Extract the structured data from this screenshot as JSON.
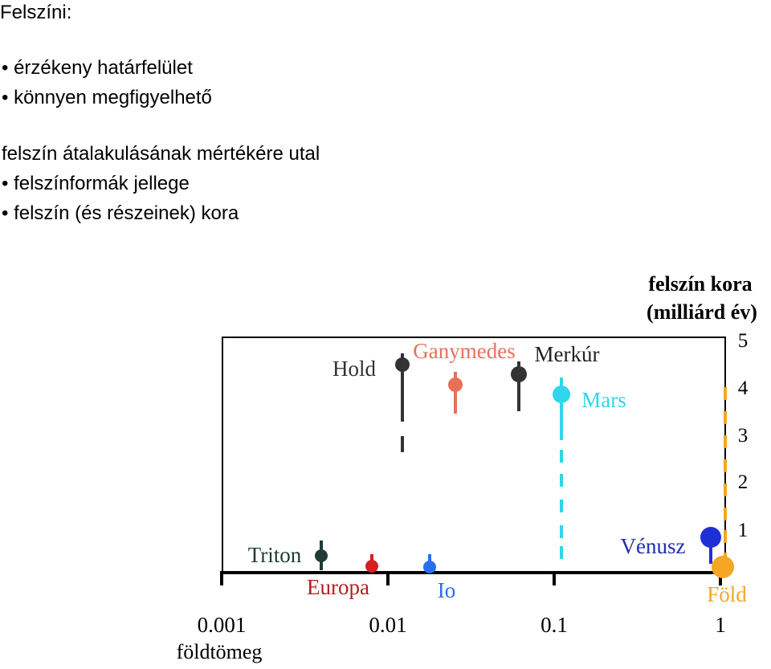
{
  "text": {
    "title": "Felszíni:",
    "bullets1": [
      "• érzékeny határfelület",
      "• könnyen megfigyelhető"
    ],
    "lead": "felszín átalakulásának mértékére utal",
    "bullets2": [
      "• felszínformák jellege",
      "• felszín (és részeinek) kora"
    ]
  },
  "chart_data": {
    "type": "scatter",
    "xscale": "log",
    "xlabel": "földtömeg",
    "x_ticks": [
      "0.001",
      "0.01",
      "0.1",
      "1"
    ],
    "ylabel_right": [
      "felszín kora",
      "(milliárd év)"
    ],
    "y_ticks": [
      "1",
      "2",
      "3",
      "4",
      "5"
    ],
    "ylim": [
      0,
      5
    ],
    "points": [
      {
        "label": "Hold",
        "x": 0.0123,
        "y": 4.4,
        "low": 3.1,
        "low2": 2.6,
        "color": "#333333"
      },
      {
        "label": "Ganymedes",
        "x": 0.025,
        "y": 3.9,
        "low": 3.3,
        "color": "#e8705a"
      },
      {
        "label": "Merkúr",
        "x": 0.055,
        "y": 4.1,
        "low": 3.3,
        "color": "#333333"
      },
      {
        "label": "Mars",
        "x": 0.107,
        "y": 3.8,
        "low": 0.5,
        "color": "#2fd6ec"
      },
      {
        "label": "Vénusz",
        "x": 0.815,
        "y": 0.7,
        "low": 0.3,
        "color": "#1f2fd8"
      },
      {
        "label": "Föld",
        "x": 1.0,
        "y": 0.05,
        "low": 4.0,
        "color": "#f5a623"
      },
      {
        "label": "Triton",
        "x": 0.0036,
        "y": 0.3,
        "low": 0.6,
        "color": "#1f3b37"
      },
      {
        "label": "Europa",
        "x": 0.008,
        "y": 0.15,
        "low": 0.35,
        "color": "#d42020"
      },
      {
        "label": "Io",
        "x": 0.015,
        "y": 0.15,
        "low": 0.4,
        "color": "#2a6ef0"
      }
    ],
    "label_colors": {
      "Hold": "#333333",
      "Ganymedes": "#e8705a",
      "Merkúr": "#222222",
      "Mars": "#2fd6ec",
      "Vénusz": "#1f2fa8",
      "Föld": "#f5a623",
      "Triton": "#1f3b37",
      "Europa": "#b32020",
      "Io": "#2a6ef0"
    }
  }
}
